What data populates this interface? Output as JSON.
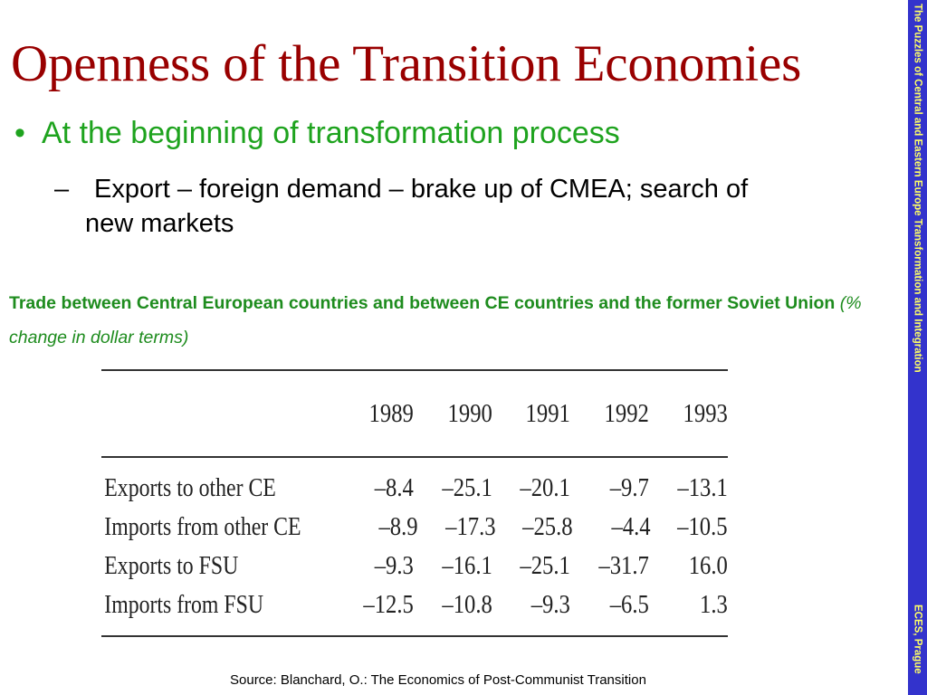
{
  "slide": {
    "title": "Openness of the Transition Economies",
    "bullet": "At the beginning of transformation process",
    "bullet_marker": "•",
    "subbullet_marker": "–",
    "subbullet_line1": "Export – foreign demand – brake up of CMEA; search of",
    "subbullet_line2": "new markets",
    "caption_bold": "Trade between Central European countries and between CE countries and the former Soviet Union",
    "caption_italic": "(% change in dollar terms)",
    "source": "Source: Blanchard, O.: The Economics of Post-Communist Transition"
  },
  "table": {
    "years": [
      "1989",
      "1990",
      "1991",
      "1992",
      "1993"
    ],
    "rows": [
      {
        "label": "Exports to other CE",
        "values": [
          "–8.4",
          "–25.1",
          "–20.1",
          "–9.7",
          "–13.1"
        ]
      },
      {
        "label": "Imports from other CE",
        "values": [
          "–8.9",
          "–17.3",
          "–25.8",
          "–4.4",
          "–10.5"
        ]
      },
      {
        "label": "Exports to FSU",
        "values": [
          "–9.3",
          "–16.1",
          "–25.1",
          "–31.7",
          "16.0"
        ]
      },
      {
        "label": "Imports from FSU",
        "values": [
          "–12.5",
          "–10.8",
          "–9.3",
          "–6.5",
          "1.3"
        ]
      }
    ]
  },
  "sidebar": {
    "top_text": "The Puzzles of Central and Eastern Europe Transformation and Integration",
    "bottom_text": "ECES, Prague",
    "color": "#3333cc",
    "text_color": "#ffff66"
  },
  "colors": {
    "title": "#990000",
    "accent_green": "#1ea31e"
  }
}
